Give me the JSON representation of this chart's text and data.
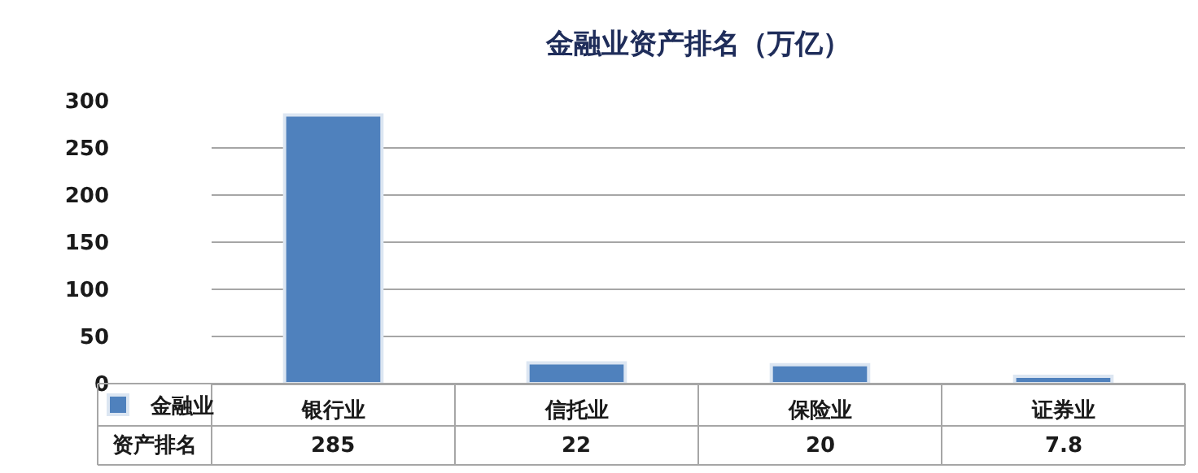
{
  "chart_data": {
    "type": "bar",
    "title": "金融业资产排名（万亿）",
    "categories": [
      "银行业",
      "信托业",
      "保险业",
      "证券业"
    ],
    "series": [
      {
        "name": "金融业",
        "color": "#4f81bd",
        "values": [
          285,
          22,
          20,
          7.8
        ]
      }
    ],
    "ylim": [
      0,
      300
    ],
    "yticks": [
      0,
      50,
      100,
      150,
      200,
      250,
      300
    ],
    "grid": "y",
    "legend": "bottom left",
    "data_labels": true,
    "annotations": [
      "资产排名"
    ]
  }
}
